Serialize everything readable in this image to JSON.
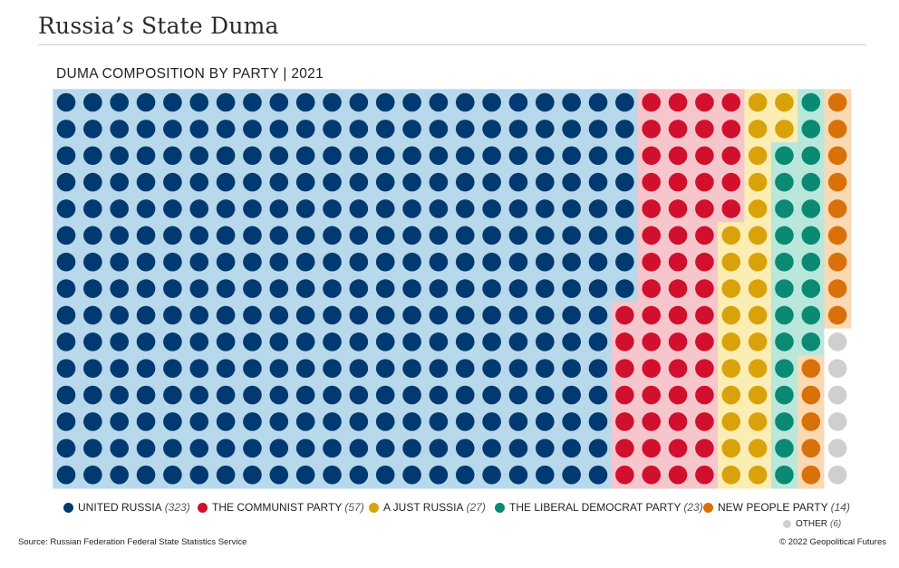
{
  "header": {
    "title": "Russia’s State Duma",
    "subtitle": "DUMA COMPOSITION BY PARTY | 2021"
  },
  "footer": {
    "source": "Source: Russian Federation Federal State Statistics Service",
    "copyright": "© 2022 Geopolitical Futures"
  },
  "chart_data": {
    "type": "waffle",
    "title": "DUMA COMPOSITION BY PARTY | 2021",
    "unit": "seats",
    "total": 450,
    "series": [
      {
        "name": "UNITED RUSSIA",
        "count_label": "(323)",
        "value": 323,
        "color": "#003a70",
        "bg": "#b8d8ec"
      },
      {
        "name": "THE COMMUNIST PARTY",
        "count_label": "(57)",
        "value": 57,
        "color": "#d0102c",
        "bg": "#f7c6cc"
      },
      {
        "name": "A JUST RUSSIA",
        "count_label": "(27)",
        "value": 27,
        "color": "#d9a20a",
        "bg": "#fcedb3"
      },
      {
        "name": "THE LIBERAL DEMOCRAT PARTY",
        "count_label": "(23)",
        "value": 23,
        "color": "#0a8a72",
        "bg": "#b9e7dc"
      },
      {
        "name": "NEW PEOPLE PARTY",
        "count_label": "(14)",
        "value": 14,
        "color": "#d9700a",
        "bg": "#fbd9b2"
      },
      {
        "name": "OTHER",
        "count_label": "(6)",
        "value": 6,
        "color": "#cfcfcf",
        "bg": "#ffffff"
      }
    ]
  }
}
